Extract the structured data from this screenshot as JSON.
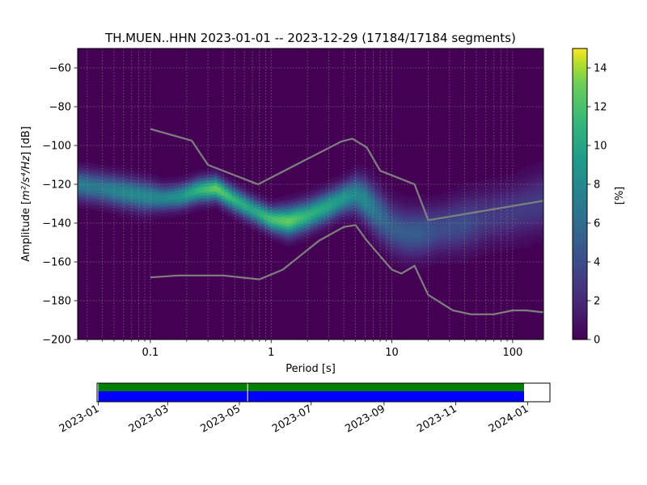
{
  "chart_data": [
    {
      "type": "heatmap",
      "title": "TH.MUEN..HHN   2023-01-01 -- 2023-12-29  (17184/17184 segments)",
      "xlabel": "Period [s]",
      "ylabel_main": "Amplitude [",
      "ylabel_math": "m²/s⁴/Hz",
      "ylabel_tail": "] [dB]",
      "xscale": "log",
      "xlim": [
        0.025,
        180
      ],
      "ylim": [
        -200,
        -50
      ],
      "xticks": [
        {
          "value": 0.1,
          "label": "0.1"
        },
        {
          "value": 1,
          "label": "1"
        },
        {
          "value": 10,
          "label": "10"
        },
        {
          "value": 100,
          "label": "100"
        }
      ],
      "yticks": [
        {
          "value": -60,
          "label": "−60"
        },
        {
          "value": -80,
          "label": "−80"
        },
        {
          "value": -100,
          "label": "−100"
        },
        {
          "value": -120,
          "label": "−120"
        },
        {
          "value": -140,
          "label": "−140"
        },
        {
          "value": -160,
          "label": "−160"
        },
        {
          "value": -180,
          "label": "−180"
        },
        {
          "value": -200,
          "label": "−200"
        }
      ],
      "grid": true,
      "colormap": "viridis",
      "colorbar": {
        "label": "[%]",
        "min": 0,
        "max": 15,
        "ticks": [
          {
            "value": 0,
            "label": "0"
          },
          {
            "value": 2,
            "label": "2"
          },
          {
            "value": 4,
            "label": "4"
          },
          {
            "value": 6,
            "label": "6"
          },
          {
            "value": 8,
            "label": "8"
          },
          {
            "value": 10,
            "label": "10"
          },
          {
            "value": 12,
            "label": "12"
          },
          {
            "value": 14,
            "label": "14"
          }
        ]
      },
      "density_ridge": {
        "period": [
          0.025,
          0.04,
          0.06,
          0.09,
          0.13,
          0.18,
          0.25,
          0.35,
          0.5,
          0.7,
          1.0,
          1.4,
          2.0,
          3.0,
          4.0,
          5.0,
          6.0,
          8.0,
          10,
          13,
          17,
          25,
          40,
          60,
          100,
          180
        ],
        "center_db": [
          -120,
          -122,
          -124,
          -126,
          -127,
          -126,
          -123,
          -122,
          -128,
          -133,
          -138,
          -139,
          -136,
          -131,
          -127,
          -125,
          -128,
          -136,
          -142,
          -145,
          -145,
          -143,
          -140,
          -137,
          -134,
          -129
        ],
        "peak_percent": [
          7,
          7,
          8,
          8,
          8,
          9,
          11,
          13,
          11,
          10,
          12,
          13,
          11,
          10,
          9,
          8,
          8,
          6,
          5,
          5,
          5,
          4,
          4,
          3,
          3,
          3
        ],
        "spread_db": [
          5,
          5,
          5,
          5,
          4,
          4,
          4,
          4,
          4,
          4,
          4,
          5,
          5,
          5,
          5,
          6,
          7,
          8,
          8,
          8,
          8,
          8,
          9,
          9,
          9,
          10
        ]
      },
      "series": [
        {
          "name": "",
          "x": [
            0.1,
            0.22,
            0.3,
            0.78,
            3.8,
            4.7,
            6.2,
            8.0,
            15.4,
            20.0,
            180
          ],
          "y": [
            -91.5,
            -97.5,
            -110,
            -120,
            -98,
            -96.5,
            -101,
            -113,
            -120,
            -138.5,
            -128.5
          ]
        },
        {
          "name": "",
          "x": [
            0.1,
            0.17,
            0.4,
            0.8,
            1.25,
            2.5,
            4.0,
            5.0,
            6.2,
            10,
            12,
            15.4,
            20,
            32,
            45,
            70,
            100,
            130,
            180
          ],
          "y": [
            -168,
            -167,
            -167,
            -169,
            -164,
            -149,
            -142,
            -141,
            -149,
            -164,
            -166,
            -162,
            -177,
            -185,
            -187,
            -187,
            -185,
            -185,
            -186
          ]
        }
      ]
    },
    {
      "type": "timeline",
      "xlim": [
        "2022-12-31",
        "2024-01-20"
      ],
      "coverage_start": "2023-01-01",
      "coverage_end": "2023-12-29",
      "gaps": [
        "2023-05-08"
      ],
      "upper_color": "#008000",
      "lower_color": "#0000ff",
      "xticks": [
        "2023-01",
        "2023-03",
        "2023-05",
        "2023-07",
        "2023-09",
        "2023-11",
        "2024-01"
      ]
    }
  ]
}
